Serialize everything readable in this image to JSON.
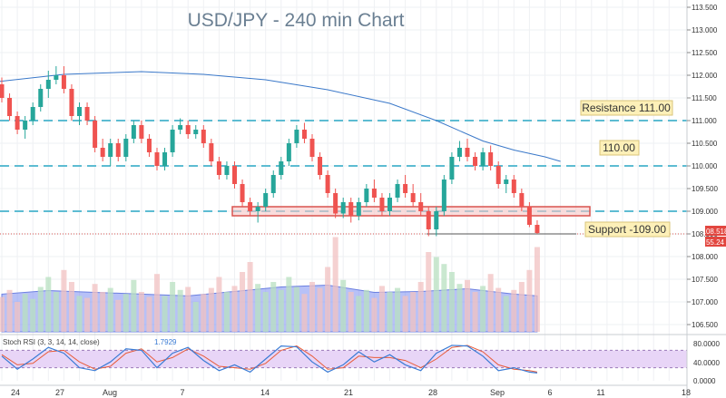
{
  "chart_data": {
    "type": "candlestick",
    "title": "USD/JPY - 240 min Chart",
    "ylim": [
      106.2,
      113.6
    ],
    "y_ticks": [
      "113.500",
      "113.000",
      "112.500",
      "112.000",
      "111.500",
      "111.000",
      "110.500",
      "110.000",
      "109.500",
      "109.000",
      "108.500",
      "108.000",
      "107.500",
      "107.000",
      "106.500"
    ],
    "x_ticks": [
      "24",
      "27",
      "Aug",
      "7",
      "14",
      "21",
      "28",
      "Sep",
      "6",
      "11",
      "18"
    ],
    "levels": [
      {
        "label": "Resistance 111.00",
        "value": 111.0
      },
      {
        "label": "110.00",
        "value": 110.0
      },
      {
        "label": "",
        "value": 109.0
      }
    ],
    "support_label": "Support -109.00",
    "support_value": 108.5,
    "support_zone": [
      108.9,
      109.1
    ],
    "price_badge": "108.518",
    "rsi_badge": "55.24",
    "ma_series": [
      {
        "x": -0.5,
        "y": 111.85
      },
      {
        "x": 4,
        "y": 112.02
      },
      {
        "x": 9,
        "y": 112.08
      },
      {
        "x": 13,
        "y": 112.02
      },
      {
        "x": 17,
        "y": 111.9
      },
      {
        "x": 21,
        "y": 111.68
      },
      {
        "x": 25,
        "y": 111.38
      },
      {
        "x": 28,
        "y": 111.0
      },
      {
        "x": 31,
        "y": 110.55
      },
      {
        "x": 33,
        "y": 110.35
      },
      {
        "x": 35,
        "y": 110.2
      },
      {
        "x": 36,
        "y": 110.1
      }
    ],
    "candles": [
      {
        "x": 0,
        "o": 111.8,
        "h": 111.95,
        "l": 111.4,
        "c": 111.5
      },
      {
        "x": 0.5,
        "o": 111.5,
        "h": 111.6,
        "l": 111.0,
        "c": 111.1
      },
      {
        "x": 1,
        "o": 111.1,
        "h": 111.2,
        "l": 110.7,
        "c": 110.8
      },
      {
        "x": 1.5,
        "o": 110.8,
        "h": 111.1,
        "l": 110.6,
        "c": 111.0
      },
      {
        "x": 2,
        "o": 111.0,
        "h": 111.4,
        "l": 110.9,
        "c": 111.3
      },
      {
        "x": 2.5,
        "o": 111.3,
        "h": 111.8,
        "l": 111.2,
        "c": 111.7
      },
      {
        "x": 3,
        "o": 111.7,
        "h": 112.1,
        "l": 111.5,
        "c": 111.9
      },
      {
        "x": 3.5,
        "o": 111.9,
        "h": 112.2,
        "l": 111.8,
        "c": 112.0
      },
      {
        "x": 4,
        "o": 112.0,
        "h": 112.2,
        "l": 111.6,
        "c": 111.7
      },
      {
        "x": 4.5,
        "o": 111.7,
        "h": 111.8,
        "l": 111.0,
        "c": 111.1
      },
      {
        "x": 5,
        "o": 111.1,
        "h": 111.4,
        "l": 110.9,
        "c": 111.3
      },
      {
        "x": 5.5,
        "o": 111.3,
        "h": 111.4,
        "l": 110.9,
        "c": 111.0
      },
      {
        "x": 6,
        "o": 111.0,
        "h": 111.1,
        "l": 110.3,
        "c": 110.4
      },
      {
        "x": 6.5,
        "o": 110.4,
        "h": 110.6,
        "l": 110.1,
        "c": 110.2
      },
      {
        "x": 7,
        "o": 110.2,
        "h": 110.6,
        "l": 110.0,
        "c": 110.5
      },
      {
        "x": 7.5,
        "o": 110.5,
        "h": 110.6,
        "l": 110.1,
        "c": 110.2
      },
      {
        "x": 8,
        "o": 110.2,
        "h": 110.7,
        "l": 110.1,
        "c": 110.6
      },
      {
        "x": 8.5,
        "o": 110.6,
        "h": 111.0,
        "l": 110.5,
        "c": 110.9
      },
      {
        "x": 9,
        "o": 110.9,
        "h": 111.0,
        "l": 110.5,
        "c": 110.6
      },
      {
        "x": 9.5,
        "o": 110.6,
        "h": 110.7,
        "l": 110.2,
        "c": 110.3
      },
      {
        "x": 10,
        "o": 110.3,
        "h": 110.4,
        "l": 109.9,
        "c": 110.0
      },
      {
        "x": 10.5,
        "o": 110.0,
        "h": 110.4,
        "l": 109.9,
        "c": 110.3
      },
      {
        "x": 11,
        "o": 110.3,
        "h": 110.9,
        "l": 110.2,
        "c": 110.8
      },
      {
        "x": 11.5,
        "o": 110.8,
        "h": 111.05,
        "l": 110.7,
        "c": 110.9
      },
      {
        "x": 12,
        "o": 110.9,
        "h": 111.0,
        "l": 110.6,
        "c": 110.7
      },
      {
        "x": 12.5,
        "o": 110.7,
        "h": 110.9,
        "l": 110.6,
        "c": 110.8
      },
      {
        "x": 13,
        "o": 110.8,
        "h": 110.9,
        "l": 110.4,
        "c": 110.5
      },
      {
        "x": 13.5,
        "o": 110.5,
        "h": 110.6,
        "l": 110.0,
        "c": 110.1
      },
      {
        "x": 14,
        "o": 110.1,
        "h": 110.2,
        "l": 109.7,
        "c": 109.8
      },
      {
        "x": 14.5,
        "o": 109.8,
        "h": 110.1,
        "l": 109.7,
        "c": 110.0
      },
      {
        "x": 15,
        "o": 110.0,
        "h": 110.1,
        "l": 109.5,
        "c": 109.6
      },
      {
        "x": 15.5,
        "o": 109.6,
        "h": 109.7,
        "l": 109.1,
        "c": 109.2
      },
      {
        "x": 16,
        "o": 109.2,
        "h": 109.3,
        "l": 108.9,
        "c": 109.0
      },
      {
        "x": 16.5,
        "o": 109.0,
        "h": 109.2,
        "l": 108.75,
        "c": 109.1
      },
      {
        "x": 17,
        "o": 109.1,
        "h": 109.5,
        "l": 109.0,
        "c": 109.4
      },
      {
        "x": 17.5,
        "o": 109.4,
        "h": 109.9,
        "l": 109.3,
        "c": 109.8
      },
      {
        "x": 18,
        "o": 109.8,
        "h": 110.2,
        "l": 109.7,
        "c": 110.1
      },
      {
        "x": 18.5,
        "o": 110.1,
        "h": 110.6,
        "l": 110.0,
        "c": 110.5
      },
      {
        "x": 19,
        "o": 110.5,
        "h": 110.9,
        "l": 110.4,
        "c": 110.8
      },
      {
        "x": 19.5,
        "o": 110.8,
        "h": 110.95,
        "l": 110.5,
        "c": 110.6
      },
      {
        "x": 20,
        "o": 110.6,
        "h": 110.7,
        "l": 110.1,
        "c": 110.2
      },
      {
        "x": 20.5,
        "o": 110.2,
        "h": 110.3,
        "l": 109.7,
        "c": 109.8
      },
      {
        "x": 21,
        "o": 109.8,
        "h": 109.9,
        "l": 109.3,
        "c": 109.4
      },
      {
        "x": 21.5,
        "o": 109.4,
        "h": 109.5,
        "l": 108.85,
        "c": 108.95
      },
      {
        "x": 22,
        "o": 108.95,
        "h": 109.3,
        "l": 108.85,
        "c": 109.2
      },
      {
        "x": 22.5,
        "o": 109.2,
        "h": 109.3,
        "l": 108.75,
        "c": 108.9
      },
      {
        "x": 23,
        "o": 108.9,
        "h": 109.3,
        "l": 108.8,
        "c": 109.2
      },
      {
        "x": 23.5,
        "o": 109.2,
        "h": 109.6,
        "l": 109.1,
        "c": 109.5
      },
      {
        "x": 24,
        "o": 109.5,
        "h": 109.7,
        "l": 109.2,
        "c": 109.3
      },
      {
        "x": 24.5,
        "o": 109.3,
        "h": 109.4,
        "l": 108.9,
        "c": 109.0
      },
      {
        "x": 25,
        "o": 109.0,
        "h": 109.4,
        "l": 108.9,
        "c": 109.3
      },
      {
        "x": 25.5,
        "o": 109.3,
        "h": 109.7,
        "l": 109.2,
        "c": 109.6
      },
      {
        "x": 26,
        "o": 109.6,
        "h": 109.8,
        "l": 109.3,
        "c": 109.4
      },
      {
        "x": 26.5,
        "o": 109.4,
        "h": 109.6,
        "l": 109.1,
        "c": 109.2
      },
      {
        "x": 27,
        "o": 109.2,
        "h": 109.4,
        "l": 108.9,
        "c": 109.0
      },
      {
        "x": 27.5,
        "o": 109.0,
        "h": 109.1,
        "l": 108.45,
        "c": 108.6
      },
      {
        "x": 28,
        "o": 108.6,
        "h": 109.1,
        "l": 108.45,
        "c": 109.0
      },
      {
        "x": 28.5,
        "o": 109.0,
        "h": 109.8,
        "l": 108.9,
        "c": 109.7
      },
      {
        "x": 29,
        "o": 109.7,
        "h": 110.3,
        "l": 109.6,
        "c": 110.2
      },
      {
        "x": 29.5,
        "o": 110.2,
        "h": 110.55,
        "l": 110.1,
        "c": 110.4
      },
      {
        "x": 30,
        "o": 110.4,
        "h": 110.6,
        "l": 110.1,
        "c": 110.2
      },
      {
        "x": 30.5,
        "o": 110.2,
        "h": 110.3,
        "l": 109.9,
        "c": 110.0
      },
      {
        "x": 31,
        "o": 110.0,
        "h": 110.4,
        "l": 109.9,
        "c": 110.3
      },
      {
        "x": 31.5,
        "o": 110.3,
        "h": 110.45,
        "l": 109.9,
        "c": 110.0
      },
      {
        "x": 32,
        "o": 110.0,
        "h": 110.1,
        "l": 109.5,
        "c": 109.6
      },
      {
        "x": 32.5,
        "o": 109.6,
        "h": 109.8,
        "l": 109.4,
        "c": 109.7
      },
      {
        "x": 33,
        "o": 109.7,
        "h": 109.8,
        "l": 109.3,
        "c": 109.4
      },
      {
        "x": 33.5,
        "o": 109.4,
        "h": 109.5,
        "l": 109.0,
        "c": 109.1
      },
      {
        "x": 34,
        "o": 109.1,
        "h": 109.2,
        "l": 108.65,
        "c": 108.7
      },
      {
        "x": 34.5,
        "o": 108.7,
        "h": 108.8,
        "l": 108.5,
        "c": 108.52
      }
    ],
    "volumes": [
      {
        "x": 0,
        "v": 0.35,
        "up": false
      },
      {
        "x": 0.5,
        "v": 0.42,
        "up": false
      },
      {
        "x": 1,
        "v": 0.3,
        "up": false
      },
      {
        "x": 1.5,
        "v": 0.38,
        "up": true
      },
      {
        "x": 2,
        "v": 0.33,
        "up": true
      },
      {
        "x": 2.5,
        "v": 0.45,
        "up": true
      },
      {
        "x": 3,
        "v": 0.55,
        "up": true
      },
      {
        "x": 3.5,
        "v": 0.4,
        "up": true
      },
      {
        "x": 4,
        "v": 0.62,
        "up": false
      },
      {
        "x": 4.5,
        "v": 0.5,
        "up": false
      },
      {
        "x": 5,
        "v": 0.36,
        "up": true
      },
      {
        "x": 5.5,
        "v": 0.34,
        "up": false
      },
      {
        "x": 6,
        "v": 0.48,
        "up": false
      },
      {
        "x": 6.5,
        "v": 0.4,
        "up": false
      },
      {
        "x": 7,
        "v": 0.44,
        "up": true
      },
      {
        "x": 7.5,
        "v": 0.32,
        "up": false
      },
      {
        "x": 8,
        "v": 0.38,
        "up": true
      },
      {
        "x": 8.5,
        "v": 0.52,
        "up": true
      },
      {
        "x": 9,
        "v": 0.4,
        "up": false
      },
      {
        "x": 9.5,
        "v": 0.35,
        "up": false
      },
      {
        "x": 10,
        "v": 0.58,
        "up": false
      },
      {
        "x": 10.5,
        "v": 0.36,
        "up": true
      },
      {
        "x": 11,
        "v": 0.5,
        "up": true
      },
      {
        "x": 11.5,
        "v": 0.42,
        "up": true
      },
      {
        "x": 12,
        "v": 0.45,
        "up": false
      },
      {
        "x": 12.5,
        "v": 0.3,
        "up": true
      },
      {
        "x": 13,
        "v": 0.38,
        "up": false
      },
      {
        "x": 13.5,
        "v": 0.44,
        "up": false
      },
      {
        "x": 14,
        "v": 0.55,
        "up": false
      },
      {
        "x": 14.5,
        "v": 0.4,
        "up": true
      },
      {
        "x": 15,
        "v": 0.46,
        "up": false
      },
      {
        "x": 15.5,
        "v": 0.6,
        "up": false
      },
      {
        "x": 16,
        "v": 0.7,
        "up": false
      },
      {
        "x": 16.5,
        "v": 0.48,
        "up": true
      },
      {
        "x": 17,
        "v": 0.4,
        "up": true
      },
      {
        "x": 17.5,
        "v": 0.5,
        "up": true
      },
      {
        "x": 18,
        "v": 0.42,
        "up": true
      },
      {
        "x": 18.5,
        "v": 0.55,
        "up": true
      },
      {
        "x": 19,
        "v": 0.45,
        "up": true
      },
      {
        "x": 19.5,
        "v": 0.38,
        "up": false
      },
      {
        "x": 20,
        "v": 0.5,
        "up": false
      },
      {
        "x": 20.5,
        "v": 0.44,
        "up": false
      },
      {
        "x": 21,
        "v": 0.65,
        "up": false
      },
      {
        "x": 21.5,
        "v": 0.95,
        "up": false
      },
      {
        "x": 22,
        "v": 0.52,
        "up": true
      },
      {
        "x": 22.5,
        "v": 0.4,
        "up": false
      },
      {
        "x": 23,
        "v": 0.36,
        "up": true
      },
      {
        "x": 23.5,
        "v": 0.42,
        "up": true
      },
      {
        "x": 24,
        "v": 0.34,
        "up": false
      },
      {
        "x": 24.5,
        "v": 0.46,
        "up": false
      },
      {
        "x": 25,
        "v": 0.4,
        "up": true
      },
      {
        "x": 25.5,
        "v": 0.44,
        "up": true
      },
      {
        "x": 26,
        "v": 0.36,
        "up": false
      },
      {
        "x": 26.5,
        "v": 0.4,
        "up": false
      },
      {
        "x": 27,
        "v": 0.5,
        "up": false
      },
      {
        "x": 27.5,
        "v": 0.8,
        "up": false
      },
      {
        "x": 28,
        "v": 0.75,
        "up": true
      },
      {
        "x": 28.5,
        "v": 0.68,
        "up": true
      },
      {
        "x": 29,
        "v": 0.6,
        "up": true
      },
      {
        "x": 29.5,
        "v": 0.48,
        "up": true
      },
      {
        "x": 30,
        "v": 0.52,
        "up": false
      },
      {
        "x": 30.5,
        "v": 0.4,
        "up": false
      },
      {
        "x": 31,
        "v": 0.46,
        "up": true
      },
      {
        "x": 31.5,
        "v": 0.58,
        "up": false
      },
      {
        "x": 32,
        "v": 0.44,
        "up": false
      },
      {
        "x": 32.5,
        "v": 0.36,
        "up": true
      },
      {
        "x": 33,
        "v": 0.42,
        "up": false
      },
      {
        "x": 33.5,
        "v": 0.5,
        "up": false
      },
      {
        "x": 34,
        "v": 0.62,
        "up": false
      },
      {
        "x": 34.5,
        "v": 0.85,
        "up": false
      }
    ],
    "volume_ma": [
      {
        "x": 0,
        "v": 0.42
      },
      {
        "x": 3,
        "v": 0.46
      },
      {
        "x": 6,
        "v": 0.44
      },
      {
        "x": 9,
        "v": 0.42
      },
      {
        "x": 12,
        "v": 0.4
      },
      {
        "x": 15,
        "v": 0.45
      },
      {
        "x": 18,
        "v": 0.5
      },
      {
        "x": 21,
        "v": 0.52
      },
      {
        "x": 24,
        "v": 0.44
      },
      {
        "x": 27,
        "v": 0.45
      },
      {
        "x": 30,
        "v": 0.48
      },
      {
        "x": 33,
        "v": 0.42
      },
      {
        "x": 34.5,
        "v": 0.4
      }
    ],
    "rsi_panel": {
      "label": "Stoch RSI (3, 3, 14, 14, close)",
      "value_k": "1.7929",
      "value_d": "",
      "ylim": [
        0,
        100
      ],
      "y_ticks": [
        "80.0000",
        "40.0000",
        "0.0000"
      ],
      "bands": [
        20,
        80
      ],
      "k": [
        {
          "x": 0,
          "y": 60
        },
        {
          "x": 1,
          "y": 15
        },
        {
          "x": 2,
          "y": 50
        },
        {
          "x": 3,
          "y": 90
        },
        {
          "x": 4,
          "y": 70
        },
        {
          "x": 5,
          "y": 20
        },
        {
          "x": 6,
          "y": 10
        },
        {
          "x": 7,
          "y": 40
        },
        {
          "x": 8,
          "y": 85
        },
        {
          "x": 9,
          "y": 80
        },
        {
          "x": 10,
          "y": 20
        },
        {
          "x": 11,
          "y": 70
        },
        {
          "x": 12,
          "y": 90
        },
        {
          "x": 13,
          "y": 45
        },
        {
          "x": 14,
          "y": 10
        },
        {
          "x": 15,
          "y": 30
        },
        {
          "x": 16,
          "y": 5
        },
        {
          "x": 17,
          "y": 50
        },
        {
          "x": 18,
          "y": 95
        },
        {
          "x": 19,
          "y": 92
        },
        {
          "x": 20,
          "y": 40
        },
        {
          "x": 21,
          "y": 5
        },
        {
          "x": 22,
          "y": 30
        },
        {
          "x": 23,
          "y": 75
        },
        {
          "x": 24,
          "y": 40
        },
        {
          "x": 25,
          "y": 65
        },
        {
          "x": 26,
          "y": 30
        },
        {
          "x": 27,
          "y": 10
        },
        {
          "x": 28,
          "y": 70
        },
        {
          "x": 29,
          "y": 97
        },
        {
          "x": 30,
          "y": 95
        },
        {
          "x": 31,
          "y": 60
        },
        {
          "x": 32,
          "y": 10
        },
        {
          "x": 33,
          "y": 20
        },
        {
          "x": 34,
          "y": 5
        },
        {
          "x": 34.5,
          "y": 2
        }
      ],
      "d": [
        {
          "x": 0,
          "y": 65
        },
        {
          "x": 1,
          "y": 30
        },
        {
          "x": 2,
          "y": 35
        },
        {
          "x": 3,
          "y": 75
        },
        {
          "x": 4,
          "y": 80
        },
        {
          "x": 5,
          "y": 40
        },
        {
          "x": 6,
          "y": 15
        },
        {
          "x": 7,
          "y": 25
        },
        {
          "x": 8,
          "y": 70
        },
        {
          "x": 9,
          "y": 85
        },
        {
          "x": 10,
          "y": 40
        },
        {
          "x": 11,
          "y": 55
        },
        {
          "x": 12,
          "y": 85
        },
        {
          "x": 13,
          "y": 60
        },
        {
          "x": 14,
          "y": 25
        },
        {
          "x": 15,
          "y": 20
        },
        {
          "x": 16,
          "y": 15
        },
        {
          "x": 17,
          "y": 35
        },
        {
          "x": 18,
          "y": 80
        },
        {
          "x": 19,
          "y": 95
        },
        {
          "x": 20,
          "y": 60
        },
        {
          "x": 21,
          "y": 15
        },
        {
          "x": 22,
          "y": 20
        },
        {
          "x": 23,
          "y": 60
        },
        {
          "x": 24,
          "y": 55
        },
        {
          "x": 25,
          "y": 55
        },
        {
          "x": 26,
          "y": 45
        },
        {
          "x": 27,
          "y": 20
        },
        {
          "x": 28,
          "y": 50
        },
        {
          "x": 29,
          "y": 90
        },
        {
          "x": 30,
          "y": 97
        },
        {
          "x": 31,
          "y": 75
        },
        {
          "x": 32,
          "y": 30
        },
        {
          "x": 33,
          "y": 15
        },
        {
          "x": 34,
          "y": 10
        },
        {
          "x": 34.5,
          "y": 5
        }
      ]
    }
  }
}
